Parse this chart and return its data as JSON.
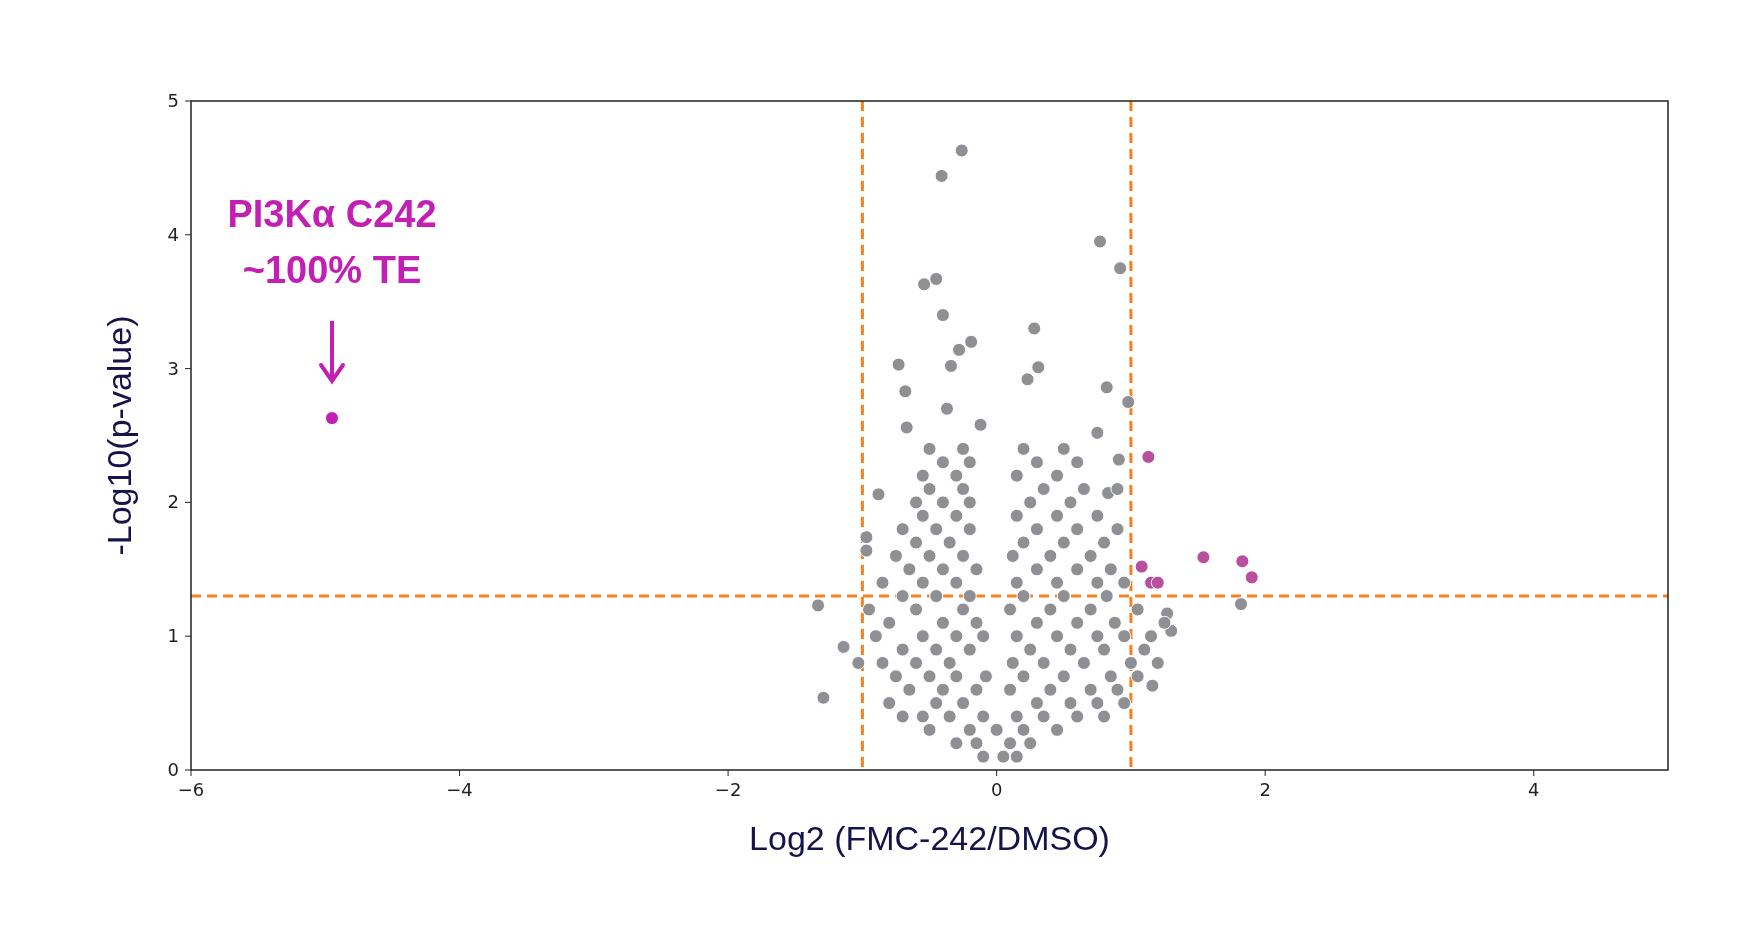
{
  "chart_data": {
    "type": "scatter",
    "xlabel": "Log2 (FMC-242/DMSO)",
    "ylabel": "-Log10(p-value)",
    "xlim": [
      -6,
      5
    ],
    "xticks": [
      {
        "value": -6,
        "label": "−6"
      },
      {
        "value": -4,
        "label": "−4"
      },
      {
        "value": -2,
        "label": "−2"
      },
      0,
      2,
      4
    ],
    "ylim": [
      0,
      5
    ],
    "yticks": [
      0,
      1,
      2,
      3,
      4,
      5
    ],
    "grid": false,
    "marker": "circle",
    "ref_lines": [
      {
        "axis": "x",
        "value": -1,
        "color": "#f5821f",
        "line_style": "dashed"
      },
      {
        "axis": "x",
        "value": 1,
        "color": "#f5821f",
        "line_style": "dashed"
      },
      {
        "axis": "y",
        "value": 1.3,
        "color": "#f5821f",
        "line_style": "dashed"
      }
    ],
    "annotations": [
      "PI3Kα C242\n~100% TE"
    ],
    "series": [
      {
        "color": "#8f9094",
        "x": [
          -0.26,
          -0.41,
          0.77,
          0.92,
          -0.45,
          -0.54,
          -0.4,
          -0.19,
          -0.28,
          0.28,
          -0.73,
          -0.34,
          -0.68,
          0.23,
          0.31,
          0.82,
          0.98,
          -0.37,
          -0.12,
          -0.67,
          -1.33,
          -1.29,
          -1.14,
          -1.03,
          1.82,
          1.3,
          1.27,
          1.16,
          0.75,
          0.91,
          0.83,
          -0.97,
          -0.88,
          -0.97,
          -0.1,
          0.05,
          0.15,
          -0.3,
          -0.15,
          0.1,
          0.25,
          -0.5,
          -0.2,
          0.0,
          0.2,
          0.45,
          -0.7,
          -0.55,
          -0.35,
          -0.1,
          0.15,
          0.35,
          0.6,
          0.8,
          -0.8,
          -0.45,
          -0.25,
          0.3,
          0.55,
          0.75,
          0.95,
          -0.65,
          -0.4,
          -0.15,
          0.1,
          0.4,
          0.7,
          0.9,
          -0.75,
          -0.5,
          -0.3,
          -0.08,
          0.2,
          0.5,
          0.85,
          1.05,
          -0.85,
          -0.6,
          -0.35,
          0.12,
          0.35,
          0.65,
          1.0,
          1.2,
          -0.7,
          -0.45,
          -0.2,
          0.25,
          0.55,
          0.8,
          1.1,
          -0.9,
          -0.55,
          -0.3,
          -0.1,
          0.15,
          0.45,
          0.75,
          0.95,
          1.15,
          -0.8,
          -0.4,
          -0.15,
          0.3,
          0.6,
          0.88,
          1.25,
          -0.95,
          -0.6,
          -0.25,
          0.1,
          0.4,
          0.7,
          1.05,
          -0.7,
          -0.45,
          -0.2,
          0.2,
          0.5,
          0.82,
          -0.85,
          -0.55,
          -0.3,
          0.15,
          0.45,
          0.75,
          0.95,
          -0.65,
          -0.4,
          -0.15,
          0.3,
          0.6,
          0.85,
          -0.75,
          -0.5,
          -0.25,
          0.12,
          0.4,
          0.7,
          -0.6,
          -0.35,
          0.2,
          0.5,
          0.8,
          -0.7,
          -0.45,
          -0.2,
          0.3,
          0.6,
          0.9,
          -0.55,
          -0.3,
          0.15,
          0.45,
          0.75,
          -0.6,
          -0.4,
          -0.2,
          0.25,
          0.55,
          -0.5,
          -0.25,
          0.35,
          0.65,
          0.9,
          -0.55,
          -0.3,
          0.15,
          0.45,
          -0.4,
          -0.2,
          0.3,
          0.6,
          -0.5,
          -0.25,
          0.2,
          0.5
        ],
        "values": [
          4.63,
          4.44,
          3.95,
          3.75,
          3.67,
          3.63,
          3.4,
          3.2,
          3.14,
          3.3,
          3.03,
          3.02,
          2.83,
          2.92,
          3.01,
          2.86,
          2.75,
          2.7,
          2.58,
          2.56,
          1.23,
          0.54,
          0.92,
          0.8,
          1.24,
          1.04,
          1.17,
          0.63,
          2.52,
          2.32,
          2.07,
          1.74,
          2.06,
          1.64,
          0.1,
          0.1,
          0.1,
          0.2,
          0.2,
          0.2,
          0.2,
          0.3,
          0.3,
          0.3,
          0.3,
          0.3,
          0.4,
          0.4,
          0.4,
          0.4,
          0.4,
          0.4,
          0.4,
          0.4,
          0.5,
          0.5,
          0.5,
          0.5,
          0.5,
          0.5,
          0.5,
          0.6,
          0.6,
          0.6,
          0.6,
          0.6,
          0.6,
          0.6,
          0.7,
          0.7,
          0.7,
          0.7,
          0.7,
          0.7,
          0.7,
          0.7,
          0.8,
          0.8,
          0.8,
          0.8,
          0.8,
          0.8,
          0.8,
          0.8,
          0.9,
          0.9,
          0.9,
          0.9,
          0.9,
          0.9,
          0.9,
          1.0,
          1.0,
          1.0,
          1.0,
          1.0,
          1.0,
          1.0,
          1.0,
          1.0,
          1.1,
          1.1,
          1.1,
          1.1,
          1.1,
          1.1,
          1.1,
          1.2,
          1.2,
          1.2,
          1.2,
          1.2,
          1.2,
          1.2,
          1.3,
          1.3,
          1.3,
          1.3,
          1.3,
          1.3,
          1.4,
          1.4,
          1.4,
          1.4,
          1.4,
          1.4,
          1.4,
          1.5,
          1.5,
          1.5,
          1.5,
          1.5,
          1.5,
          1.6,
          1.6,
          1.6,
          1.6,
          1.6,
          1.6,
          1.7,
          1.7,
          1.7,
          1.7,
          1.7,
          1.8,
          1.8,
          1.8,
          1.8,
          1.8,
          1.8,
          1.9,
          1.9,
          1.9,
          1.9,
          1.9,
          2.0,
          2.0,
          2.0,
          2.0,
          2.0,
          2.1,
          2.1,
          2.1,
          2.1,
          2.1,
          2.2,
          2.2,
          2.2,
          2.2,
          2.3,
          2.3,
          2.3,
          2.3,
          2.4,
          2.4,
          2.4,
          2.4
        ]
      },
      {
        "color": "#b94f9f",
        "x": [
          1.13,
          1.08,
          1.15,
          1.2,
          1.54,
          1.83,
          1.9
        ],
        "values": [
          2.34,
          1.52,
          1.4,
          1.4,
          1.59,
          1.56,
          1.44
        ]
      },
      {
        "color": "#c41fb5",
        "x": [
          -4.95
        ],
        "values": [
          2.63
        ]
      }
    ]
  }
}
